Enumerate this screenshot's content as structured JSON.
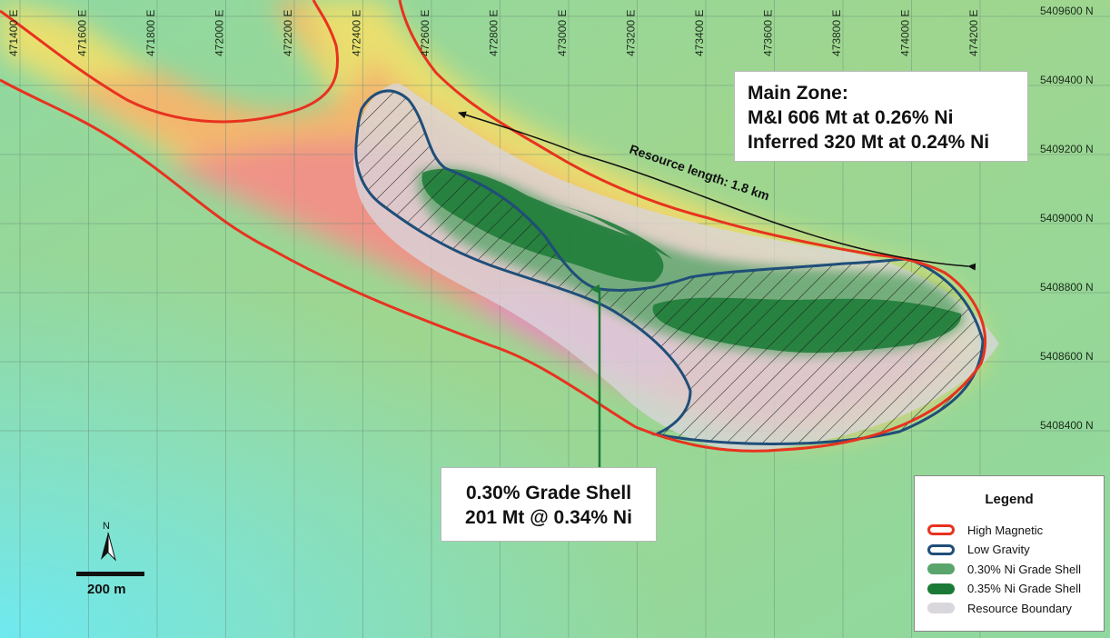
{
  "map": {
    "easting_labels": [
      "471400 E",
      "471600 E",
      "471800 E",
      "472000 E",
      "472200 E",
      "472400 E",
      "472600 E",
      "472800 E",
      "473000 E",
      "473200 E",
      "473400 E",
      "473600 E",
      "473800 E",
      "474000 E",
      "474200 E"
    ],
    "northing_labels": [
      "5409600 N",
      "5409400 N",
      "5409200 N",
      "5409000 N",
      "5408800 N",
      "5408600 N",
      "5408400 N"
    ],
    "resource_length_label": "Resource length: 1.8 km"
  },
  "main_zone": {
    "title": "Main Zone:",
    "line1": "M&I 606 Mt at 0.26% Ni",
    "line2": "Inferred 320 Mt at 0.24% Ni"
  },
  "grade_shell_callout": {
    "line1": "0.30% Grade Shell",
    "line2": "201 Mt @ 0.34% Ni"
  },
  "scale": {
    "north_label": "N",
    "scale_label": "200 m"
  },
  "legend": {
    "title": "Legend",
    "items": [
      {
        "label": "High Magnetic",
        "color": "#e8321f",
        "style": "outline"
      },
      {
        "label": "Low Gravity",
        "color": "#1f4e79",
        "style": "outline"
      },
      {
        "label": "0.30% Ni Grade Shell",
        "color": "#5aa56b",
        "style": "fill"
      },
      {
        "label": "0.35% Ni Grade Shell",
        "color": "#1a7a35",
        "style": "fill"
      },
      {
        "label": "Resource Boundary",
        "color": "#d9d6dc",
        "style": "fill"
      }
    ]
  },
  "colors": {
    "high_magnetic": "#e8321f",
    "low_gravity": "#1f4e79",
    "grade_030": "#5aa56b",
    "grade_035": "#1a7a35",
    "resource_boundary": "#d9d6dc",
    "callout_arrow": "#1a7a35"
  }
}
